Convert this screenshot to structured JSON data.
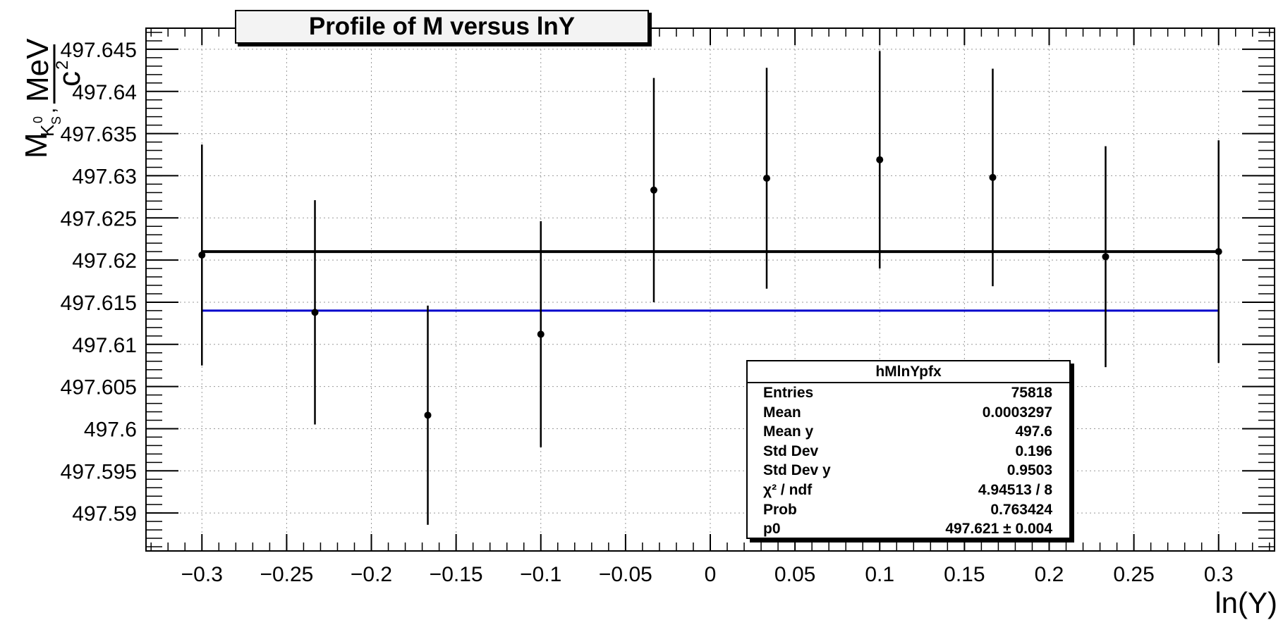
{
  "chart_data": {
    "type": "scatter",
    "title": "Profile of M versus lnY",
    "xlabel": "ln(Y)",
    "ylabel": "M_{K_S^0}, MeV/c²",
    "xlim": [
      -0.333,
      0.333
    ],
    "ylim": [
      497.5855,
      497.6475
    ],
    "xticks": [
      -0.3,
      -0.25,
      -0.2,
      -0.15,
      -0.1,
      -0.05,
      0,
      0.05,
      0.1,
      0.15,
      0.2,
      0.25,
      0.3
    ],
    "xtick_labels": [
      "−0.3",
      "−0.25",
      "−0.2",
      "−0.15",
      "−0.1",
      "−0.05",
      "0",
      "0.05",
      "0.1",
      "0.15",
      "0.2",
      "0.25",
      "0.3"
    ],
    "yticks": [
      497.59,
      497.595,
      497.6,
      497.605,
      497.61,
      497.615,
      497.62,
      497.625,
      497.63,
      497.635,
      497.64,
      497.645
    ],
    "ytick_labels": [
      "497.59",
      "497.595",
      "497.6",
      "497.605",
      "497.61",
      "497.615",
      "497.62",
      "497.625",
      "497.63",
      "497.635",
      "497.64",
      "497.645"
    ],
    "grid": true,
    "points": [
      {
        "x": -0.3,
        "y": 497.6206,
        "err": 0.0131
      },
      {
        "x": -0.2333,
        "y": 497.6138,
        "err": 0.0133
      },
      {
        "x": -0.1667,
        "y": 497.6016,
        "err": 0.013
      },
      {
        "x": -0.1,
        "y": 497.6112,
        "err": 0.0134
      },
      {
        "x": -0.0333,
        "y": 497.6283,
        "err": 0.0133
      },
      {
        "x": 0.0333,
        "y": 497.6297,
        "err": 0.0131
      },
      {
        "x": 0.1,
        "y": 497.6319,
        "err": 0.0129
      },
      {
        "x": 0.1667,
        "y": 497.6298,
        "err": 0.0129
      },
      {
        "x": 0.2333,
        "y": 497.6204,
        "err": 0.0131
      },
      {
        "x": 0.3,
        "y": 497.621,
        "err": 0.0132
      }
    ],
    "fit_line": {
      "y": 497.621,
      "x_range": [
        -0.3,
        0.3
      ],
      "color": "#000000"
    },
    "reference_line": {
      "y": 497.614,
      "x_range": [
        -0.3,
        0.3
      ],
      "color": "#0000cc"
    },
    "stats_box": {
      "name": "hMlnYpfx",
      "rows": [
        {
          "label": "Entries",
          "value": "75818"
        },
        {
          "label": "Mean",
          "value": "0.0003297"
        },
        {
          "label": "Mean y",
          "value": "497.6"
        },
        {
          "label": "Std Dev",
          "value": "0.196"
        },
        {
          "label": "Std Dev y",
          "value": "0.9503"
        },
        {
          "label": "χ² / ndf",
          "value": "4.94513 / 8"
        },
        {
          "label": "Prob",
          "value": "0.763424"
        },
        {
          "label": "p0",
          "value": "497.621 ± 0.004"
        }
      ]
    }
  }
}
